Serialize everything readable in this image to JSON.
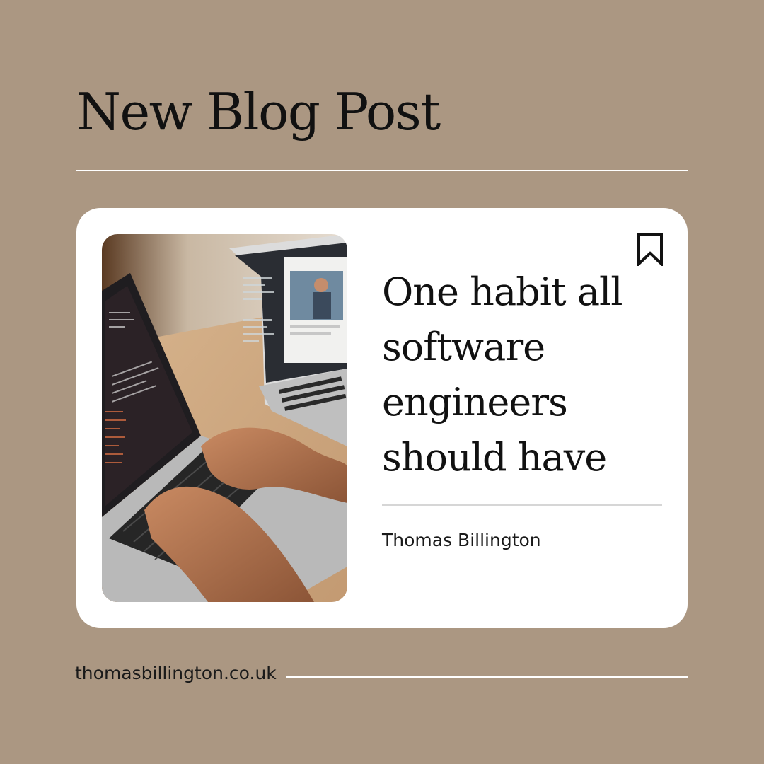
{
  "header": {
    "title": "New Blog Post"
  },
  "card": {
    "post_title": "One habit all software engineers should have",
    "author": "Thomas Billington",
    "image_icon": "laptop-photo",
    "bookmark_icon": "bookmark-icon"
  },
  "footer": {
    "url": "thomasbillington.co.uk"
  },
  "colors": {
    "background": "#ab9782",
    "card": "#ffffff",
    "text": "#111111",
    "rule": "#ffffff"
  }
}
